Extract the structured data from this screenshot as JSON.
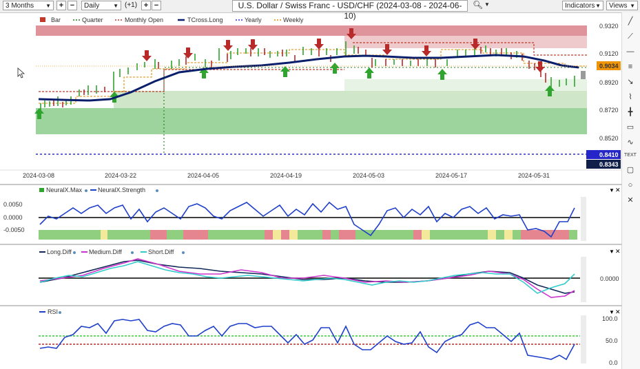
{
  "toolbar": {
    "range_label": "3 Months",
    "interval_label": "Daily",
    "offset_label": "(+1)",
    "title": "U.S. Dollar / Swiss Franc - USD/CHF (2024-03-08 - 2024-06-10)",
    "indicators_label": "Indicators",
    "views_label": "Views"
  },
  "main_legend": [
    {
      "label": "Bar",
      "color": "#c0392b",
      "style": "swatch"
    },
    {
      "label": "Quarter",
      "color": "#1e7b1e",
      "style": "dash"
    },
    {
      "label": "Monthly Open",
      "color": "#c0392b",
      "style": "dash"
    },
    {
      "label": "TCross.Long",
      "color": "#0a1f6b",
      "style": "solid"
    },
    {
      "label": "Yearly",
      "color": "#2c2ccf",
      "style": "dash"
    },
    {
      "label": "Weekly",
      "color": "#e08a00",
      "style": "dash"
    }
  ],
  "price_axis": [
    "0.9320",
    "0.9120",
    "0.8920",
    "0.8720",
    "0.8520"
  ],
  "price_badges": [
    {
      "value": "0.9034",
      "color": "#f0940a"
    },
    {
      "value": "0.8410",
      "color": "#2626c8"
    },
    {
      "value": "0.8343",
      "color": "#10204a"
    }
  ],
  "date_axis": [
    "2024-03-08",
    "2024-03-22",
    "2024-04-05",
    "2024-04-19",
    "2024-05-03",
    "2024-05-17",
    "2024-05-31"
  ],
  "panel_neural": {
    "legend": [
      "NeuralX.Max",
      "NeuralX.Strength"
    ],
    "axis": [
      "0.0050",
      "0.0000",
      "-0.0050"
    ]
  },
  "panel_diff": {
    "legend": [
      "Long.Diff",
      "Medium.Diff",
      "Short.Diff"
    ],
    "axis": [
      "0.0000"
    ]
  },
  "panel_rsi": {
    "legend": [
      "RSI"
    ],
    "axis": [
      "100.0",
      "50.0",
      "0.0"
    ]
  },
  "colors": {
    "bull": "#2fa52f",
    "bear": "#b82a2a",
    "tcross": "#0a1f6b",
    "neutral": "#f0e68c"
  },
  "icons": [
    "pencil-icon",
    "line-icon",
    "hline-icon",
    "channel-icon",
    "fib-icon",
    "pitchfork-icon",
    "text-icon",
    "shape-icon",
    "measure-icon",
    "marker-icon",
    "zoom-icon",
    "close-icon"
  ]
}
